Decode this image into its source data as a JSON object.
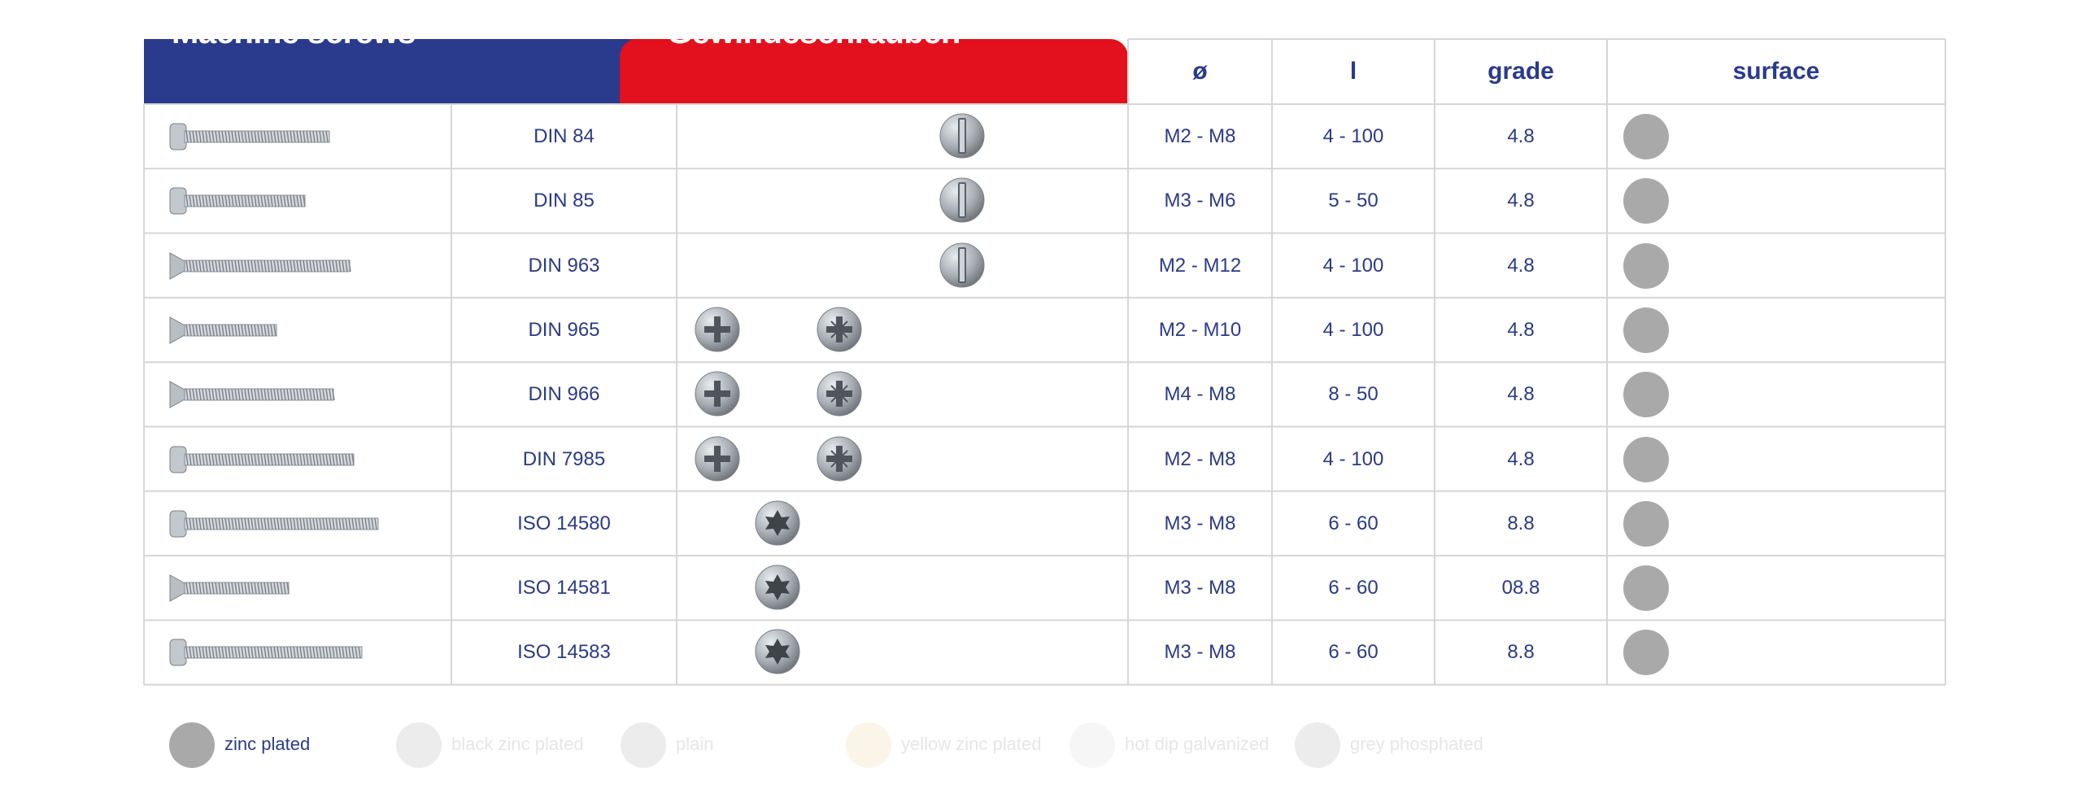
{
  "header": {
    "title_en": "Machine screws",
    "title_de": "Gewindeschrauben",
    "columns": {
      "diameter": "ø",
      "length": "l",
      "grade": "grade",
      "surface": "surface"
    }
  },
  "rows": [
    {
      "standard": "DIN 84",
      "diameter": "M2 - M8",
      "length": "4 - 100",
      "grade": "4.8",
      "heads": [
        "slotted-cheese"
      ],
      "screw": "slotted-cheese-head-screw",
      "surface": "zinc plated"
    },
    {
      "standard": "DIN 85",
      "diameter": "M3 - M6",
      "length": "5 - 50",
      "grade": "4.8",
      "heads": [
        "slotted-pan"
      ],
      "screw": "slotted-pan-head-screw",
      "surface": "zinc plated"
    },
    {
      "standard": "DIN 963",
      "diameter": "M2 - M12",
      "length": "4 - 100",
      "grade": "4.8",
      "heads": [
        "slotted-countersunk"
      ],
      "screw": "slotted-countersunk-screw",
      "surface": "zinc plated"
    },
    {
      "standard": "DIN 965",
      "diameter": "M2 - M10",
      "length": "4 - 100",
      "grade": "4.8",
      "heads": [
        "phillips",
        "pozidriv"
      ],
      "screw": "cross-countersunk-screw",
      "surface": "zinc plated"
    },
    {
      "standard": "DIN 966",
      "diameter": "M4 - M8",
      "length": "8 - 50",
      "grade": "4.8",
      "heads": [
        "phillips",
        "pozidriv"
      ],
      "screw": "cross-raised-countersunk-screw",
      "surface": "zinc plated"
    },
    {
      "standard": "DIN 7985",
      "diameter": "M2 - M8",
      "length": "4 - 100",
      "grade": "4.8",
      "heads": [
        "phillips",
        "pozidriv"
      ],
      "screw": "cross-pan-head-screw",
      "surface": "zinc plated"
    },
    {
      "standard": "ISO 14580",
      "diameter": "M3 - M8",
      "length": "6 - 60",
      "grade": "8.8",
      "heads": [
        "torx"
      ],
      "screw": "torx-cheese-head-screw",
      "surface": "zinc plated"
    },
    {
      "standard": "ISO 14581",
      "diameter": "M3 - M8",
      "length": "6 - 60",
      "grade": "08.8",
      "heads": [
        "torx"
      ],
      "screw": "torx-countersunk-screw",
      "surface": "zinc plated"
    },
    {
      "standard": "ISO 14583",
      "diameter": "M3 - M8",
      "length": "6 - 60",
      "grade": "8.8",
      "heads": [
        "torx"
      ],
      "screw": "torx-pan-head-screw",
      "surface": "zinc plated"
    }
  ],
  "legend": [
    {
      "label": "zinc plated",
      "color": "#a9a9a9",
      "text_color": "#2b3a86",
      "active": true
    },
    {
      "label": "black zinc plated",
      "color": "#ececec",
      "text_color": "#e6e6e6",
      "active": false
    },
    {
      "label": "plain",
      "color": "#ececec",
      "text_color": "#e6e6e6",
      "active": false
    },
    {
      "label": "yellow zinc plated",
      "color": "#faf5e8",
      "text_color": "#e6e6e6",
      "active": false
    },
    {
      "label": "hot dip galvanized",
      "color": "#f6f6f6",
      "text_color": "#e6e6e6",
      "active": false
    },
    {
      "label": "grey phosphated",
      "color": "#ececec",
      "text_color": "#e6e6e6",
      "active": false
    }
  ],
  "colors": {
    "brand_blue": "#2a3a8c",
    "brand_red": "#e3101d",
    "text_blue": "#2b3a86",
    "grid_line": "#d6d6d6",
    "zinc": "#a9a9a9"
  }
}
